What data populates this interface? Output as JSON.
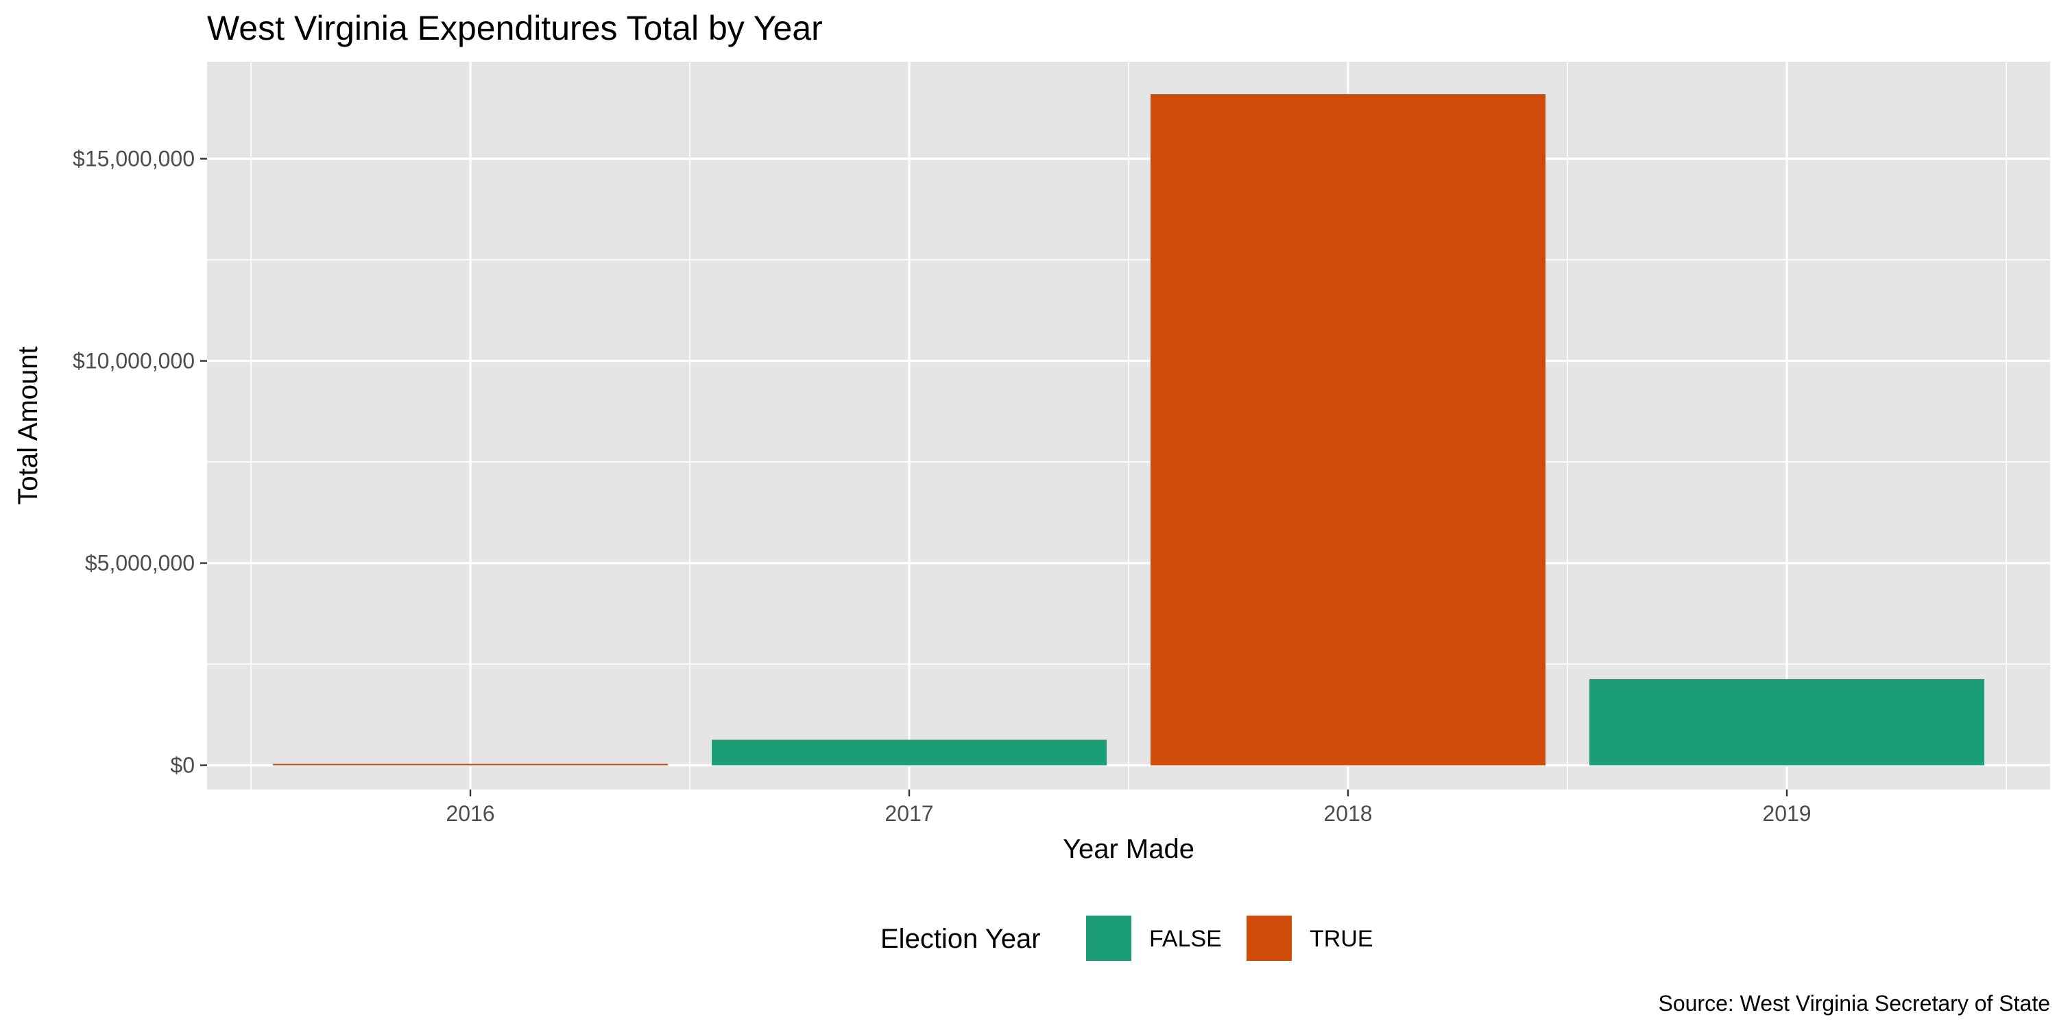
{
  "chart_data": {
    "type": "bar",
    "title": "West Virginia Expenditures Total by Year",
    "xlabel": "Year Made",
    "ylabel": "Total Amount",
    "caption": "Source: West Virginia Secretary of State",
    "categories": [
      "2016",
      "2017",
      "2018",
      "2019"
    ],
    "values": [
      15000,
      630000,
      16600000,
      2130000
    ],
    "election_year": [
      "TRUE",
      "FALSE",
      "TRUE",
      "FALSE"
    ],
    "ylim": [
      -600000,
      17400000
    ],
    "y_ticks": [
      0,
      5000000,
      10000000,
      15000000
    ],
    "y_tick_labels": [
      "$0",
      "$5,000,000",
      "$10,000,000",
      "$15,000,000"
    ],
    "grid": true,
    "legend": {
      "title": "Election Year",
      "position": "bottom",
      "entries": [
        {
          "label": "FALSE",
          "color": "#1b9e77"
        },
        {
          "label": "TRUE",
          "color": "#d95f02"
        }
      ]
    },
    "colors": {
      "FALSE": "#1b9e77",
      "TRUE": "#d04a09",
      "panel": "#e5e5e5",
      "grid": "#ffffff"
    }
  }
}
